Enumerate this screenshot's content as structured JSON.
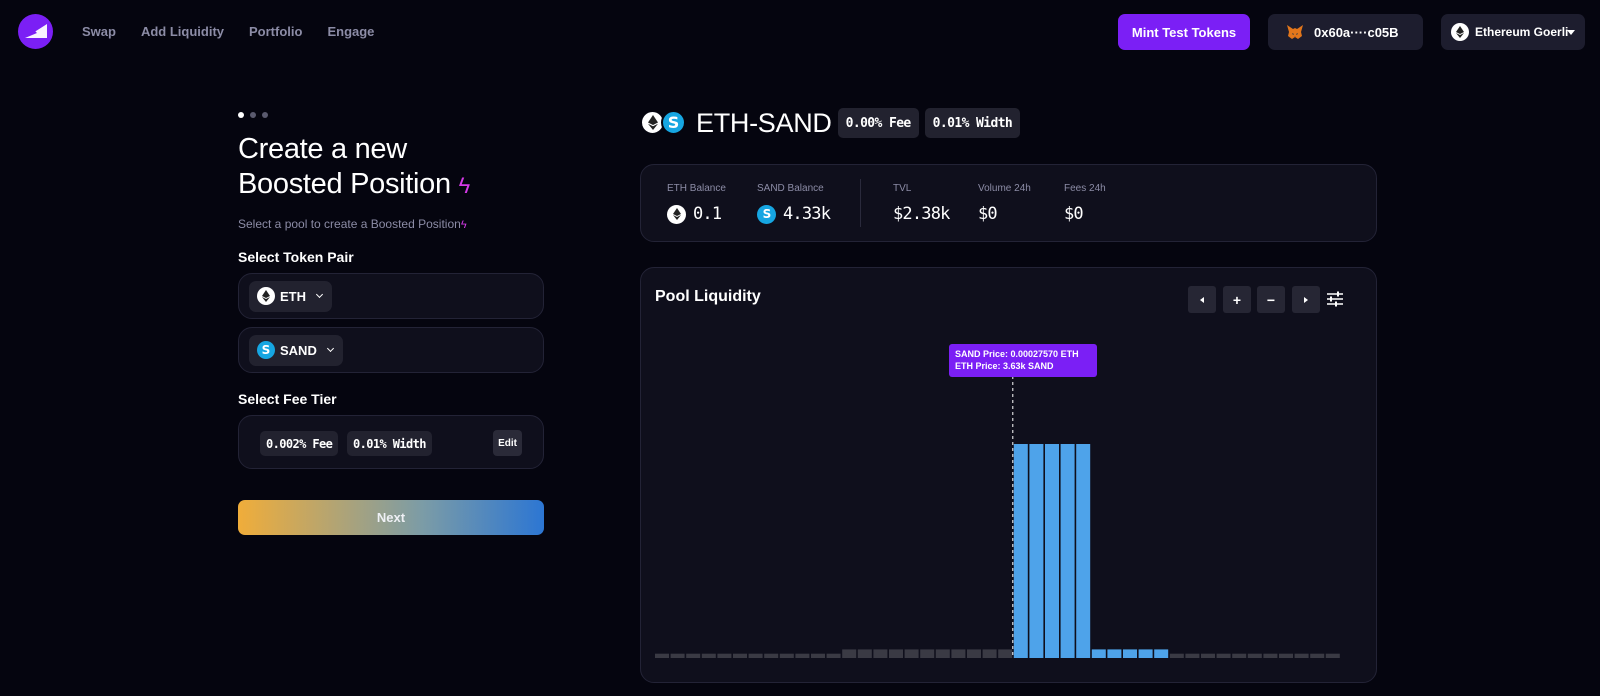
{
  "nav": {
    "links": [
      "Swap",
      "Add Liquidity",
      "Portfolio",
      "Engage"
    ],
    "mint_label": "Mint Test Tokens",
    "wallet_address": "0x60a····c05B",
    "network": "Ethereum Goerli"
  },
  "left": {
    "title_line1": "Create a new",
    "title_line2": "Boosted Position",
    "subtitle": "Select a pool to create a Boosted Position",
    "pair_label": "Select Token Pair",
    "token_a": "ETH",
    "token_b": "SAND",
    "fee_label": "Select Fee Tier",
    "fee_chip": "0.002% Fee",
    "width_chip": "0.01% Width",
    "edit_label": "Edit",
    "next_label": "Next",
    "step_total": 3,
    "step_current": 1
  },
  "pool": {
    "name": "ETH-SAND",
    "fee_chip": "0.00% Fee",
    "width_chip": "0.01% Width"
  },
  "stats": {
    "eth_balance_label": "ETH Balance",
    "eth_balance": "0.1",
    "sand_balance_label": "SAND Balance",
    "sand_balance": "4.33k",
    "tvl_label": "TVL",
    "tvl": "$2.38k",
    "volume_label": "Volume 24h",
    "volume": "$0",
    "fees_label": "Fees 24h",
    "fees": "$0"
  },
  "liquidity": {
    "title": "Pool Liquidity",
    "tooltip_line1": "SAND Price:  0.00027570 ETH",
    "tooltip_line2": "ETH Price:  3.63k SAND",
    "controls": [
      "left-arrow",
      "+",
      "−",
      "right-arrow",
      "settings-sliders"
    ]
  },
  "colors": {
    "accent": "#7b1ff5",
    "bar_active": "#4ea3ea",
    "bar_inactive": "#3a3a44",
    "bolt": "#d63ae8"
  },
  "chart_data": {
    "type": "bar",
    "title": "Pool Liquidity",
    "values": [
      0.02,
      0.02,
      0.02,
      0.02,
      0.02,
      0.02,
      0.02,
      0.02,
      0.02,
      0.02,
      0.02,
      0.02,
      0.04,
      0.04,
      0.04,
      0.04,
      0.04,
      0.04,
      0.04,
      0.04,
      0.04,
      0.04,
      0.04,
      1.0,
      1.0,
      1.0,
      1.0,
      1.0,
      0.04,
      0.04,
      0.04,
      0.04,
      0.04,
      0.02,
      0.02,
      0.02,
      0.02,
      0.02,
      0.02,
      0.02,
      0.02,
      0.02,
      0.02,
      0.02
    ],
    "active": [
      false,
      false,
      false,
      false,
      false,
      false,
      false,
      false,
      false,
      false,
      false,
      false,
      false,
      false,
      false,
      false,
      false,
      false,
      false,
      false,
      false,
      false,
      false,
      true,
      true,
      true,
      true,
      true,
      true,
      true,
      true,
      true,
      true,
      false,
      false,
      false,
      false,
      false,
      false,
      false,
      false,
      false,
      false,
      false
    ],
    "current_price_bar_index": 23,
    "ylim": [
      0,
      1
    ]
  }
}
